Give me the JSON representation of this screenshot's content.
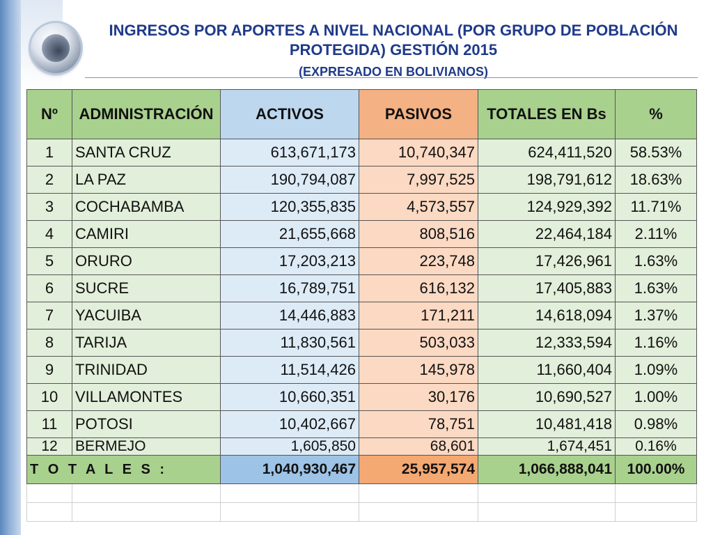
{
  "title": "INGRESOS POR APORTES A NIVEL NACIONAL (POR GRUPO DE POBLACIÓN PROTEGIDA) GESTIÓN 2015",
  "subtitle": "(EXPRESADO EN BOLIVIANOS)",
  "logo_icon": "circular-emblem-icon",
  "colors": {
    "header_green": "#a9d18e",
    "header_blue": "#bdd7ee",
    "header_orange": "#f4b183",
    "title_blue": "#1f3a8a"
  },
  "table": {
    "headers": [
      "Nº",
      "ADMINISTRACIÓN",
      "ACTIVOS",
      "PASIVOS",
      "TOTALES EN Bs",
      "%"
    ],
    "rows": [
      {
        "no": "1",
        "admin": "SANTA CRUZ",
        "activos": "613,671,173",
        "pasivos": "10,740,347",
        "totales": "624,411,520",
        "pct": "58.53%"
      },
      {
        "no": "2",
        "admin": "LA PAZ",
        "activos": "190,794,087",
        "pasivos": "7,997,525",
        "totales": "198,791,612",
        "pct": "18.63%"
      },
      {
        "no": "3",
        "admin": "COCHABAMBA",
        "activos": "120,355,835",
        "pasivos": "4,573,557",
        "totales": "124,929,392",
        "pct": "11.71%"
      },
      {
        "no": "4",
        "admin": "CAMIRI",
        "activos": "21,655,668",
        "pasivos": "808,516",
        "totales": "22,464,184",
        "pct": "2.11%"
      },
      {
        "no": "5",
        "admin": "ORURO",
        "activos": "17,203,213",
        "pasivos": "223,748",
        "totales": "17,426,961",
        "pct": "1.63%"
      },
      {
        "no": "6",
        "admin": "SUCRE",
        "activos": "16,789,751",
        "pasivos": "616,132",
        "totales": "17,405,883",
        "pct": "1.63%"
      },
      {
        "no": "7",
        "admin": "YACUIBA",
        "activos": "14,446,883",
        "pasivos": "171,211",
        "totales": "14,618,094",
        "pct": "1.37%"
      },
      {
        "no": "8",
        "admin": "TARIJA",
        "activos": "11,830,561",
        "pasivos": "503,033",
        "totales": "12,333,594",
        "pct": "1.16%"
      },
      {
        "no": "9",
        "admin": "TRINIDAD",
        "activos": "11,514,426",
        "pasivos": "145,978",
        "totales": "11,660,404",
        "pct": "1.09%"
      },
      {
        "no": "10",
        "admin": "VILLAMONTES",
        "activos": "10,660,351",
        "pasivos": "30,176",
        "totales": "10,690,527",
        "pct": "1.00%"
      },
      {
        "no": "11",
        "admin": "POTOSI",
        "activos": "10,402,667",
        "pasivos": "78,751",
        "totales": "10,481,418",
        "pct": "0.98%"
      },
      {
        "no": "12",
        "admin": "BERMEJO",
        "activos": "1,605,850",
        "pasivos": "68,601",
        "totales": "1,674,451",
        "pct": "0.16%"
      }
    ],
    "totals": {
      "label": "T O T A L E S :",
      "activos": "1,040,930,467",
      "pasivos": "25,957,574",
      "totales": "1,066,888,041",
      "pct": "100.00%"
    }
  }
}
